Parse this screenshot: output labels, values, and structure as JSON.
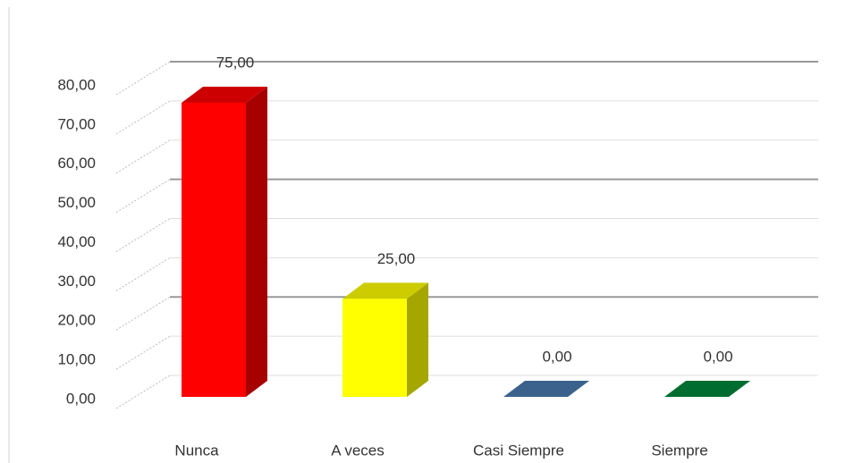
{
  "chart_data": {
    "type": "bar3d",
    "categories": [
      "Nunca",
      "A veces",
      "Casi Siempre",
      "Siempre"
    ],
    "values": [
      75,
      25,
      0,
      0
    ],
    "value_labels": [
      "75,00",
      "25,00",
      "0,00",
      "0,00"
    ],
    "colors": [
      "#ff0000",
      "#ffff00",
      "#4a7ab0",
      "#00883c"
    ],
    "ylim": [
      0,
      80
    ],
    "yticks": [
      {
        "value": 0,
        "label": "0,00"
      },
      {
        "value": 10,
        "label": "10,00"
      },
      {
        "value": 20,
        "label": "20,00"
      },
      {
        "value": 30,
        "label": "30,00"
      },
      {
        "value": 40,
        "label": "40,00"
      },
      {
        "value": 50,
        "label": "50,00"
      },
      {
        "value": 60,
        "label": "60,00"
      },
      {
        "value": 70,
        "label": "70,00"
      },
      {
        "value": 80,
        "label": "80,00"
      }
    ],
    "grid": true
  }
}
